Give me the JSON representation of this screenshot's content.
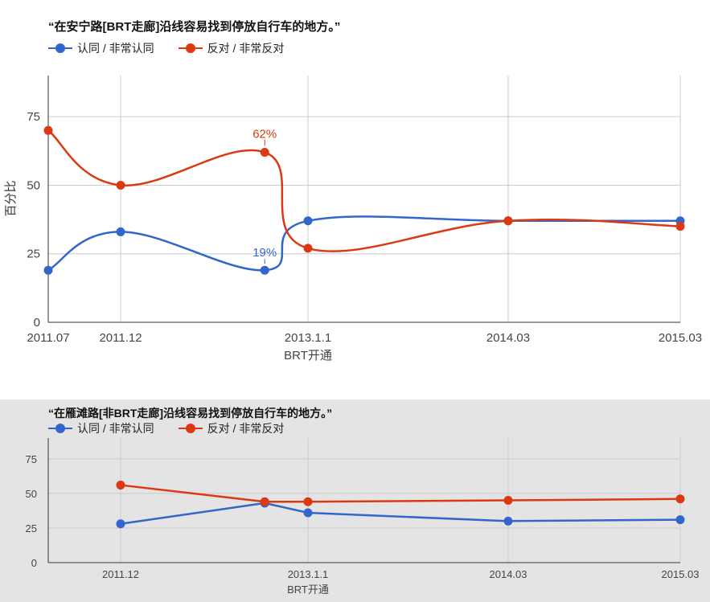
{
  "chart_data": [
    {
      "type": "line",
      "title": "“在安宁路[BRT走廊]沿线容易找到停放自行车的地方。”",
      "xlabel": "BRT开通",
      "ylabel": "百分比",
      "ylim": [
        0,
        90
      ],
      "yticks": [
        0,
        25,
        50,
        75
      ],
      "x_tick_labels": [
        "2011.07",
        "2011.12",
        "2013.1.1",
        "2014.03",
        "2015.03"
      ],
      "grid": true,
      "legend_position": "top-left",
      "series": [
        {
          "name": "认同 / 非常认同",
          "color": "#3366cc",
          "points": [
            {
              "x": "2011.07",
              "y": 19
            },
            {
              "x": "2011.12",
              "y": 33
            },
            {
              "x": "2012.10",
              "y": 19
            },
            {
              "x": "2013.01",
              "y": 37
            },
            {
              "x": "2014.03",
              "y": 37
            },
            {
              "x": "2015.03",
              "y": 37
            }
          ]
        },
        {
          "name": "反对 / 非常反对",
          "color": "#dc3912",
          "points": [
            {
              "x": "2011.07",
              "y": 70
            },
            {
              "x": "2011.12",
              "y": 50
            },
            {
              "x": "2012.10",
              "y": 62
            },
            {
              "x": "2013.01",
              "y": 27
            },
            {
              "x": "2014.03",
              "y": 37
            },
            {
              "x": "2015.03",
              "y": 35
            }
          ]
        }
      ],
      "annotations": [
        {
          "series": 1,
          "point": 2,
          "text": "62%"
        },
        {
          "series": 0,
          "point": 2,
          "text": "19%"
        }
      ]
    },
    {
      "type": "line",
      "title": "“在雁滩路[非BRT走廊]沿线容易找到停放自行车的地方。”",
      "xlabel": "BRT开通",
      "ylabel": "",
      "ylim": [
        0,
        90
      ],
      "yticks": [
        0,
        25,
        50,
        75
      ],
      "x_tick_labels": [
        "2011.12",
        "2013.1.1",
        "2014.03",
        "2015.03"
      ],
      "grid": true,
      "legend_position": "top-left",
      "series": [
        {
          "name": "认同 / 非常认同",
          "color": "#3366cc",
          "points": [
            {
              "x": "2011.12",
              "y": 28
            },
            {
              "x": "2012.10",
              "y": 43
            },
            {
              "x": "2013.01",
              "y": 36
            },
            {
              "x": "2014.03",
              "y": 30
            },
            {
              "x": "2015.03",
              "y": 31
            }
          ]
        },
        {
          "name": "反对 / 非常反对",
          "color": "#dc3912",
          "points": [
            {
              "x": "2011.12",
              "y": 56
            },
            {
              "x": "2012.10",
              "y": 44
            },
            {
              "x": "2013.01",
              "y": 44
            },
            {
              "x": "2014.03",
              "y": 45
            },
            {
              "x": "2015.03",
              "y": 46
            }
          ]
        }
      ],
      "annotations": []
    }
  ]
}
